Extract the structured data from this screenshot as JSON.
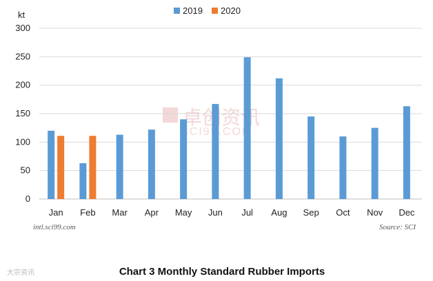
{
  "chart_data": {
    "type": "bar",
    "title": "Chart 3 Monthly Standard Rubber Imports",
    "ylabel": "kt",
    "xlabel": "",
    "categories": [
      "Jan",
      "Feb",
      "Mar",
      "Apr",
      "May",
      "Jun",
      "Jul",
      "Aug",
      "Sep",
      "Oct",
      "Nov",
      "Dec"
    ],
    "series": [
      {
        "name": "2019",
        "color": "#5b9bd5",
        "values": [
          120,
          63,
          113,
          122,
          140,
          167,
          249,
          212,
          145,
          110,
          125,
          163
        ]
      },
      {
        "name": "2020",
        "color": "#ed7d31",
        "values": [
          111,
          111,
          null,
          null,
          null,
          null,
          null,
          null,
          null,
          null,
          null,
          null
        ]
      }
    ],
    "ylim": [
      0,
      300
    ],
    "yticks": [
      0,
      50,
      100,
      150,
      200,
      250,
      300
    ],
    "grid": true,
    "legend_position": "top-center"
  },
  "notes": {
    "source_left": "intl.sci99.com",
    "source_right": "Source: SCI"
  },
  "watermark": {
    "text": "卓创资讯",
    "subtext": "SCI99.COM"
  },
  "corner_logo": "大宗资讯"
}
